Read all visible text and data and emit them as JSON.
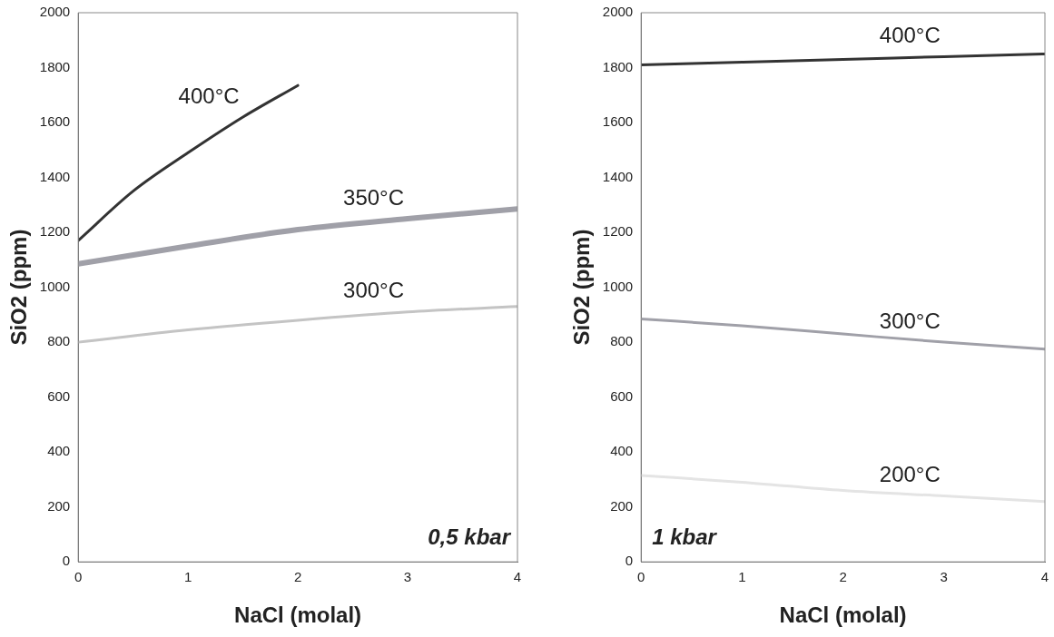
{
  "chart_data": [
    {
      "type": "line",
      "xlabel": "NaCl (molal)",
      "ylabel": "SiO2 (ppm)",
      "xlim": [
        0,
        4
      ],
      "xticks": [
        0,
        1,
        2,
        3,
        4
      ],
      "ylim": [
        0,
        2000
      ],
      "yticks": [
        0,
        200,
        400,
        600,
        800,
        1000,
        1200,
        1400,
        1600,
        1800,
        2000
      ],
      "grid": false,
      "legend": false,
      "marker": "none",
      "line_style": "solid",
      "annotations": [
        "0,5 kbar"
      ],
      "series": [
        {
          "name": "400°C",
          "color": "#333333",
          "x": [
            0,
            0.5,
            1,
            1.5,
            2
          ],
          "values": [
            1170,
            1350,
            1490,
            1620,
            1735
          ]
        },
        {
          "name": "350°C",
          "color": "#a0a0a8",
          "x": [
            0,
            1,
            2,
            3,
            4
          ],
          "values": [
            1085,
            1150,
            1210,
            1250,
            1285
          ]
        },
        {
          "name": "300°C",
          "color": "#c4c4c4",
          "x": [
            0,
            1,
            2,
            3,
            4
          ],
          "values": [
            800,
            845,
            880,
            910,
            930
          ]
        }
      ]
    },
    {
      "type": "line",
      "xlabel": "NaCl (molal)",
      "ylabel": "SiO2 (ppm)",
      "xlim": [
        0,
        4
      ],
      "xticks": [
        0,
        1,
        2,
        3,
        4
      ],
      "ylim": [
        0,
        2000
      ],
      "yticks": [
        0,
        200,
        400,
        600,
        800,
        1000,
        1200,
        1400,
        1600,
        1800,
        2000
      ],
      "grid": false,
      "legend": false,
      "marker": "none",
      "line_style": "solid",
      "annotations": [
        "1 kbar"
      ],
      "series": [
        {
          "name": "400°C",
          "color": "#333333",
          "x": [
            0,
            1,
            2,
            3,
            4
          ],
          "values": [
            1810,
            1820,
            1830,
            1840,
            1850
          ]
        },
        {
          "name": "300°C",
          "color": "#a0a0a8",
          "x": [
            0,
            1,
            2,
            3,
            4
          ],
          "values": [
            885,
            860,
            830,
            800,
            775
          ]
        },
        {
          "name": "200°C",
          "color": "#e4e4e4",
          "x": [
            0,
            1,
            2,
            3,
            4
          ],
          "values": [
            315,
            290,
            260,
            240,
            220
          ]
        }
      ]
    }
  ]
}
